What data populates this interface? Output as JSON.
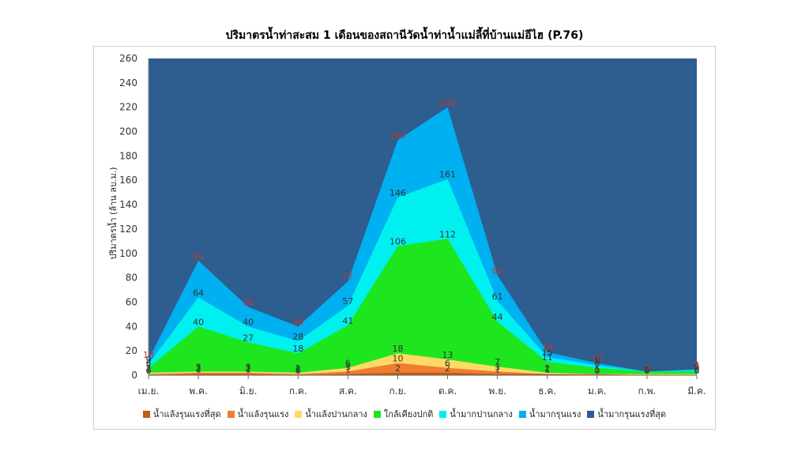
{
  "chart_data": {
    "type": "area",
    "title": "ปริมาตรน้ำท่าสะสม 1 เดือนของสถานีวัดน้ำท่าน้ำแม่ลี้ที่บ้านแม่อีไฮ (P.76)",
    "ylabel": "ปริมาตรน้ำ (ล้าน ลบ.ม.)",
    "xlabel": "",
    "ylim": [
      0,
      260
    ],
    "yticks": [
      "0",
      "20",
      "40",
      "60",
      "80",
      "100",
      "120",
      "140",
      "160",
      "180",
      "200",
      "220",
      "240",
      "260"
    ],
    "categories": [
      "เม.ย.",
      "พ.ค.",
      "มิ.ย.",
      "ก.ค.",
      "ส.ค.",
      "ก.ย.",
      "ต.ค.",
      "พ.ย.",
      "ธ.ค.",
      "ม.ค.",
      "ก.พ.",
      "มี.ค."
    ],
    "legend_position": "bottom",
    "series": [
      {
        "name": "น้ำแล้งรุนแรงที่สุด",
        "color": "#c55a11",
        "values": [
          0,
          1,
          1,
          0,
          1,
          2,
          2,
          1,
          1,
          0,
          0,
          0
        ],
        "labels": [
          "0",
          "1",
          "1",
          "0",
          "1",
          "2",
          "2",
          "1",
          "1",
          "0",
          "0",
          "0"
        ]
      },
      {
        "name": "น้ำแล้งรุนแรง",
        "color": "#ed7d31",
        "values": [
          1,
          2,
          2,
          1,
          3,
          10,
          6,
          3,
          1,
          1,
          0,
          0
        ],
        "labels": [
          "1",
          "2",
          "2",
          "1",
          "3",
          "10",
          "6",
          "3",
          "1",
          "1",
          "0",
          "0"
        ]
      },
      {
        "name": "น้ำแล้งปานกลาง",
        "color": "#ffd966",
        "values": [
          2,
          3,
          3,
          2,
          6,
          18,
          13,
          7,
          2,
          1,
          1,
          1
        ],
        "labels": [
          "2",
          "3",
          "3",
          "2",
          "6",
          "18",
          "13",
          "7",
          "2",
          "1",
          "1",
          "1"
        ]
      },
      {
        "name": "ใกล้เคียงปกติ",
        "color": "#1ee61e",
        "values": [
          6,
          40,
          27,
          18,
          41,
          106,
          112,
          44,
          11,
          6,
          3,
          3
        ],
        "labels": [
          "6",
          "40",
          "27",
          "18",
          "41",
          "106",
          "112",
          "44",
          "11",
          "6",
          "3",
          "3"
        ]
      },
      {
        "name": "น้ำมากปานกลาง",
        "color": "#00f0f0",
        "values": [
          9,
          64,
          40,
          28,
          57,
          146,
          161,
          61,
          15,
          8,
          3,
          4
        ],
        "labels": [
          "9",
          "64",
          "40",
          "28",
          "57",
          "146",
          "161",
          "61",
          "15",
          "8",
          "3",
          "4"
        ]
      },
      {
        "name": "น้ำมากรุนแรง",
        "color": "#00b0f0",
        "values": [
          13,
          94,
          56,
          40,
          77,
          193,
          220,
          82,
          19,
          10,
          3,
          5
        ],
        "labels": [
          "13",
          "94",
          "56",
          "40",
          "77",
          "193",
          "220",
          "82",
          "19",
          "10",
          "3",
          "5"
        ]
      },
      {
        "name": "น้ำมากรุนแรงที่สุด",
        "color": "#2e5d8f",
        "values": [
          260,
          260,
          260,
          260,
          260,
          260,
          260,
          260,
          260,
          260,
          260,
          260
        ],
        "labels": []
      }
    ]
  }
}
